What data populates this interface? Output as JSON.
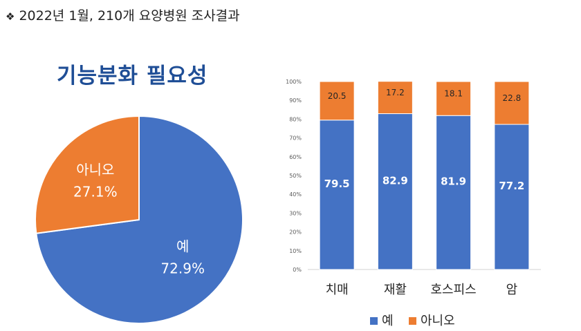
{
  "header": {
    "bullet": "❖",
    "text": "2022년 1월, 210개 요양병원 조사결과"
  },
  "colors": {
    "yes": "#4472c4",
    "no": "#ed7d31",
    "title": "#1f4e96"
  },
  "chart_data": [
    {
      "type": "pie",
      "title": "기능분화 필요성",
      "slices": [
        {
          "label": "예",
          "value": 72.9,
          "value_label": "72.9%",
          "color": "#4472c4"
        },
        {
          "label": "아니오",
          "value": 27.1,
          "value_label": "27.1%",
          "color": "#ed7d31"
        }
      ]
    },
    {
      "type": "bar",
      "stacked": true,
      "categories": [
        "치매",
        "재활",
        "호스피스",
        "암"
      ],
      "series": [
        {
          "name": "예",
          "values": [
            79.5,
            82.9,
            81.9,
            77.2
          ],
          "labels": [
            "79.5",
            "82.9",
            "81.9",
            "77.2"
          ],
          "color": "#4472c4"
        },
        {
          "name": "아니오",
          "values": [
            20.5,
            17.2,
            18.1,
            22.8
          ],
          "labels": [
            "20.5",
            "17.2",
            "18.1",
            "22.8"
          ],
          "color": "#ed7d31"
        }
      ],
      "yticks": [
        "0%",
        "10%",
        "20%",
        "30%",
        "40%",
        "50%",
        "60%",
        "70%",
        "80%",
        "90%",
        "100%"
      ],
      "ylim": [
        0,
        100
      ],
      "legend": {
        "position": "bottom",
        "items": [
          "예",
          "아니오"
        ]
      }
    }
  ]
}
